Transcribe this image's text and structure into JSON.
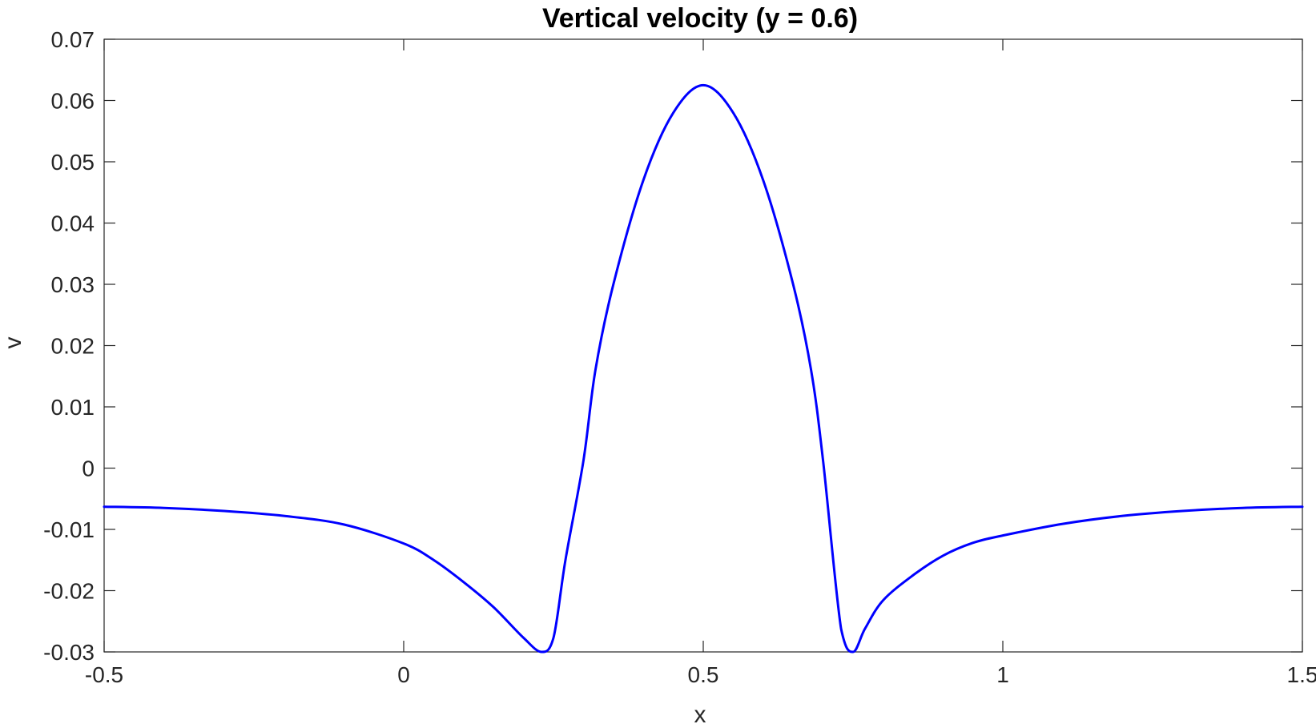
{
  "chart_data": {
    "type": "line",
    "title": "Vertical velocity (y = 0.6)",
    "xlabel": "x",
    "ylabel": "v",
    "xlim": [
      -0.5,
      1.5
    ],
    "ylim": [
      -0.03,
      0.07
    ],
    "xticks": [
      -0.5,
      0,
      0.5,
      1,
      1.5
    ],
    "xtick_labels": [
      "-0.5",
      "0",
      "0.5",
      "1",
      "1.5"
    ],
    "yticks": [
      -0.03,
      -0.02,
      -0.01,
      0,
      0.01,
      0.02,
      0.03,
      0.04,
      0.05,
      0.06,
      0.07
    ],
    "ytick_labels": [
      "-0.03",
      "-0.02",
      "-0.01",
      "0",
      "0.01",
      "0.02",
      "0.03",
      "0.04",
      "0.05",
      "0.06",
      "0.07"
    ],
    "grid": false,
    "series": [
      {
        "color": "#0000ff",
        "x": [
          -0.5,
          -0.4,
          -0.3,
          -0.2,
          -0.1,
          0.0,
          0.05,
          0.1,
          0.15,
          0.2,
          0.23,
          0.25,
          0.27,
          0.3,
          0.32,
          0.35,
          0.4,
          0.45,
          0.5,
          0.55,
          0.6,
          0.65,
          0.68,
          0.7,
          0.73,
          0.75,
          0.77,
          0.8,
          0.85,
          0.9,
          0.95,
          1.0,
          1.1,
          1.2,
          1.3,
          1.4,
          1.5
        ],
        "y": [
          -0.0063,
          -0.0065,
          -0.007,
          -0.0078,
          -0.0092,
          -0.0123,
          -0.015,
          -0.0186,
          -0.0227,
          -0.0277,
          -0.03,
          -0.0277,
          -0.015,
          0.0012,
          0.016,
          0.03,
          0.047,
          0.058,
          0.0625,
          0.058,
          0.047,
          0.03,
          0.016,
          0.0012,
          -0.0262,
          -0.03,
          -0.0262,
          -0.0216,
          -0.0175,
          -0.0143,
          -0.0122,
          -0.011,
          -0.0091,
          -0.0078,
          -0.007,
          -0.0065,
          -0.0063
        ]
      }
    ]
  }
}
